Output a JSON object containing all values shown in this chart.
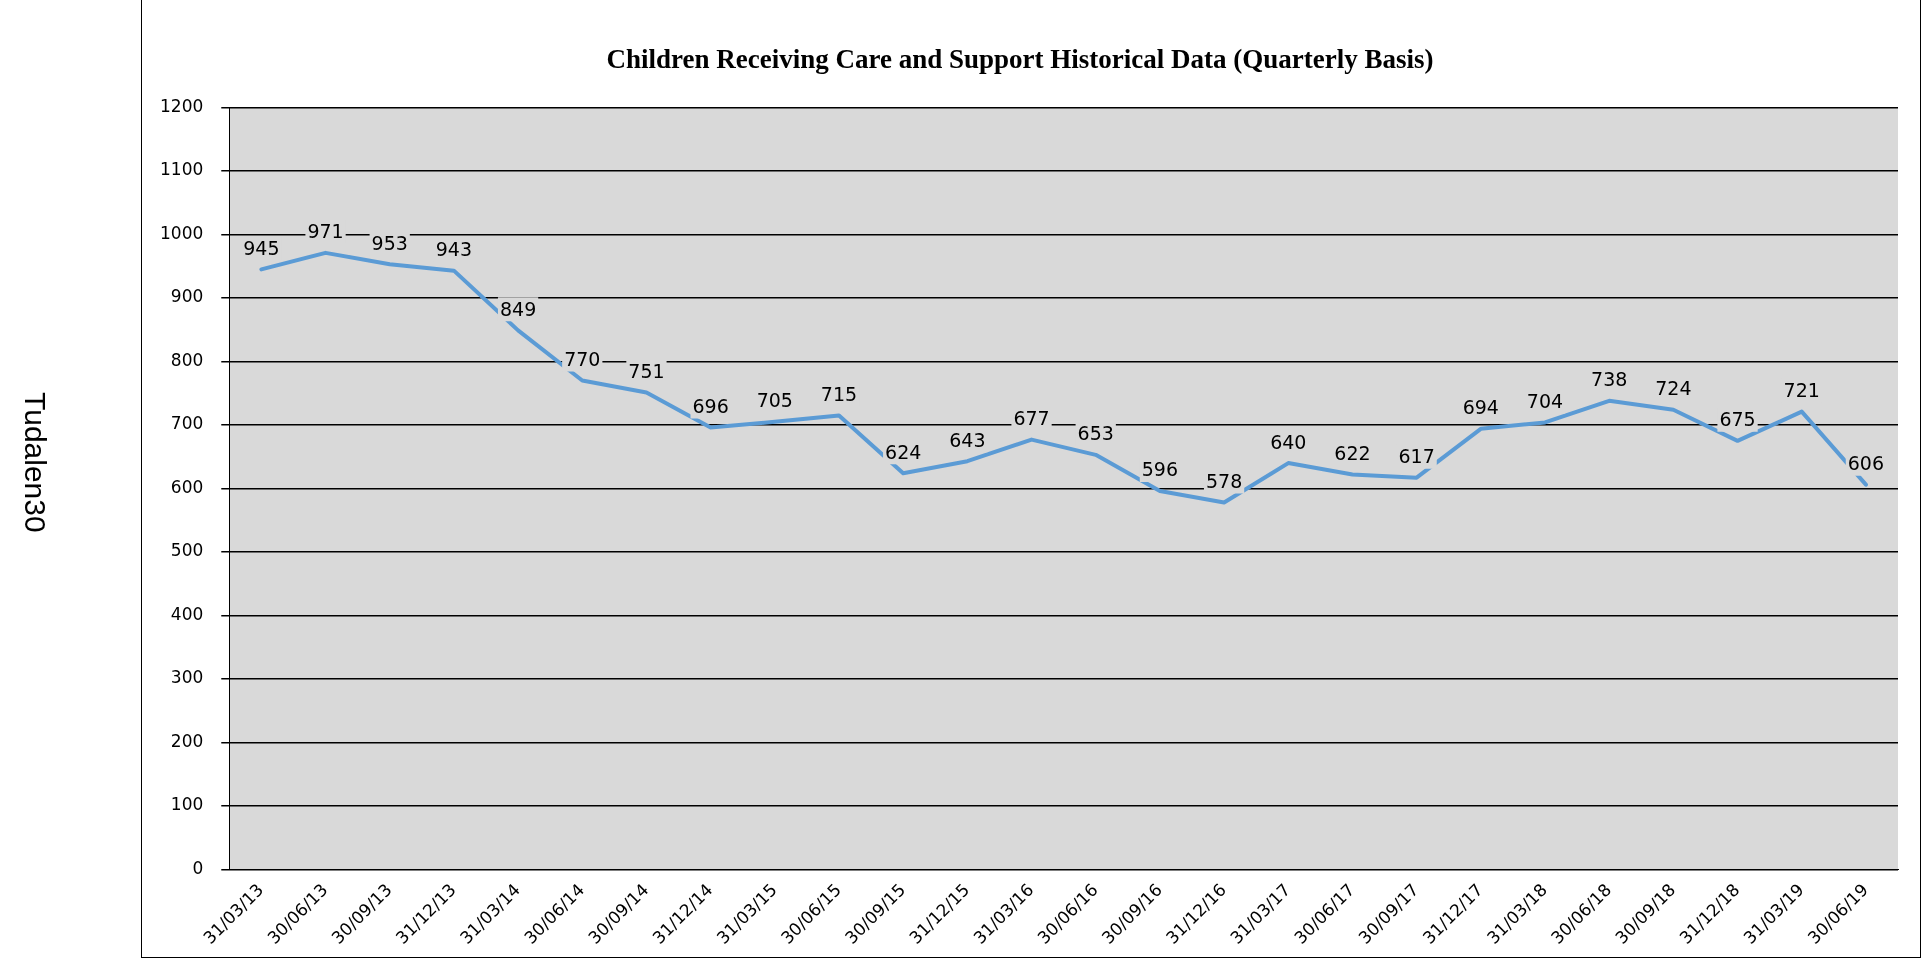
{
  "chart_data": {
    "type": "line",
    "title": "Children Receiving Care and Support Historical Data (Quarterly Basis)",
    "categories": [
      "31/03/13",
      "30/06/13",
      "30/09/13",
      "31/12/13",
      "31/03/14",
      "30/06/14",
      "30/09/14",
      "31/12/14",
      "31/03/15",
      "30/06/15",
      "30/09/15",
      "31/12/15",
      "31/03/16",
      "30/06/16",
      "30/09/16",
      "31/12/16",
      "31/03/17",
      "30/06/17",
      "30/09/17",
      "31/12/17",
      "31/03/18",
      "30/06/18",
      "30/09/18",
      "31/12/18",
      "31/03/19",
      "30/06/19"
    ],
    "series": [
      {
        "color": "#5b9bd5",
        "values": [
          945,
          971,
          953,
          943,
          849,
          770,
          751,
          696,
          705,
          715,
          624,
          643,
          677,
          653,
          596,
          578,
          640,
          622,
          617,
          694,
          704,
          738,
          724,
          675,
          721,
          606
        ]
      }
    ],
    "ylim": [
      0,
      1200
    ],
    "yticks": [
      0,
      100,
      200,
      300,
      400,
      500,
      600,
      700,
      800,
      900,
      1000,
      1100,
      1200
    ],
    "grid": "y",
    "data_labels": true,
    "legend": false,
    "marker": "none",
    "line_style": "solid",
    "annotations": [
      "Tudalen30"
    ]
  }
}
